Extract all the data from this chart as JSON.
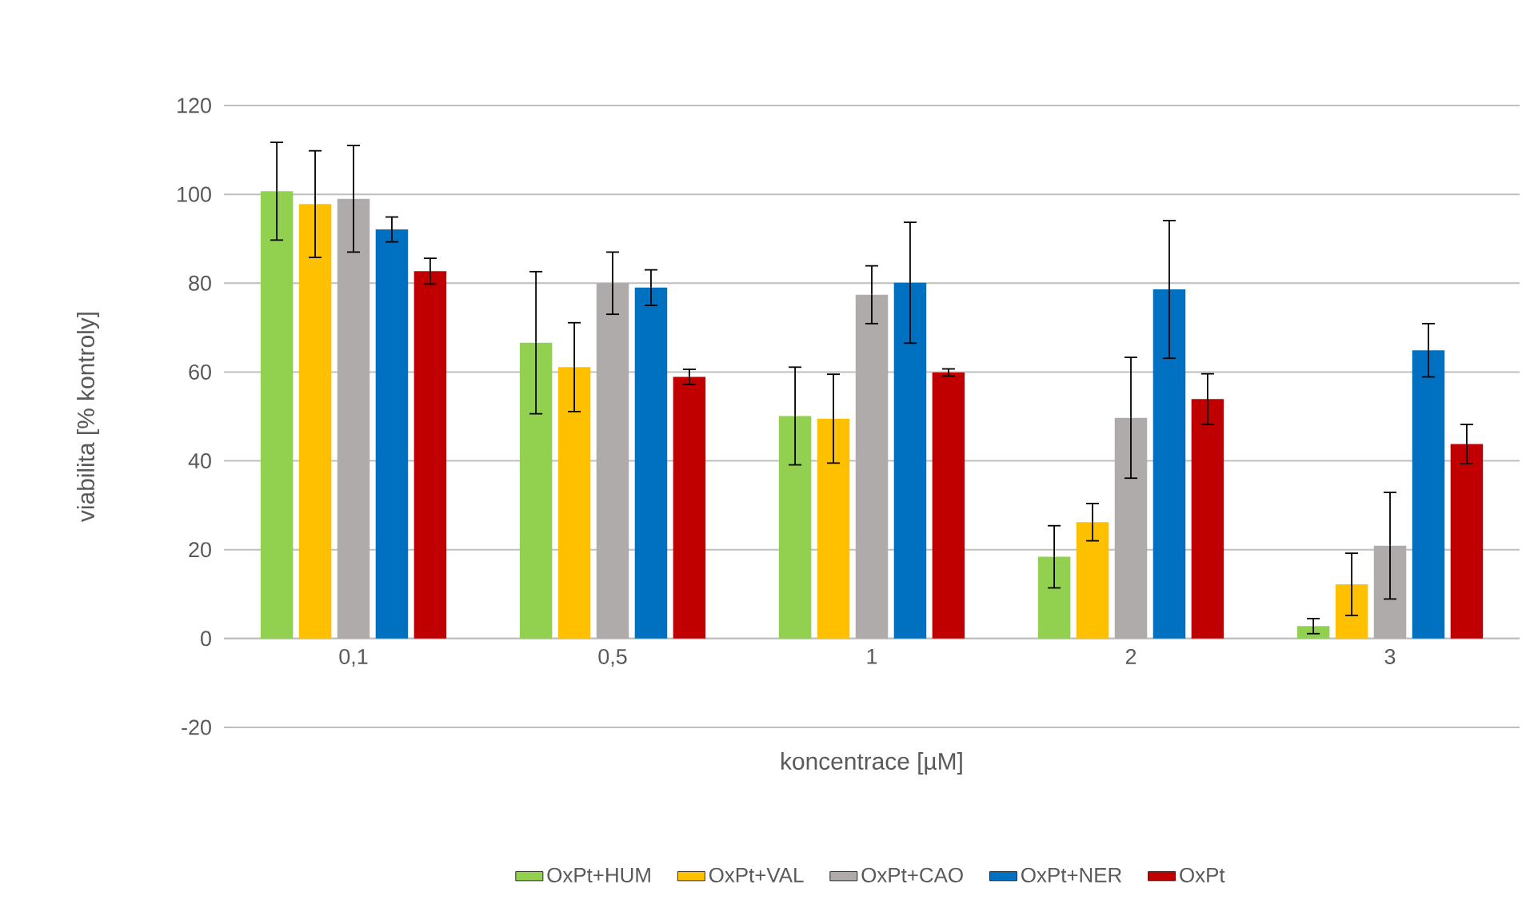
{
  "chart_data": {
    "type": "bar",
    "xlabel": "koncentrace [µM]",
    "ylabel": "viabilita [% kontroly]",
    "categories": [
      "0,1",
      "0,5",
      "1",
      "2",
      "3"
    ],
    "series": [
      {
        "name": "OxPt+HUM",
        "color": "#92d050",
        "values": [
          100.7,
          66.6,
          50.1,
          18.4,
          2.8
        ],
        "errors": [
          11,
          16,
          11,
          7,
          1.7
        ]
      },
      {
        "name": "OxPt+VAL",
        "color": "#ffc000",
        "values": [
          97.8,
          61.1,
          49.5,
          26.2,
          12.2
        ],
        "errors": [
          12,
          10,
          10,
          4.2,
          7
        ]
      },
      {
        "name": "OxPt+CAO",
        "color": "#afabab",
        "values": [
          99,
          80,
          77.4,
          49.7,
          20.9
        ],
        "errors": [
          12,
          7,
          6.5,
          13.6,
          12
        ]
      },
      {
        "name": "OxPt+NER",
        "color": "#0070c0",
        "values": [
          92.1,
          79,
          80.1,
          78.6,
          64.9
        ],
        "errors": [
          2.8,
          4,
          13.6,
          15.5,
          6
        ]
      },
      {
        "name": "OxPt",
        "color": "#c00000",
        "values": [
          82.7,
          58.9,
          59.9,
          53.9,
          43.8
        ],
        "errors": [
          2.9,
          1.7,
          0.8,
          5.7,
          4.4
        ]
      }
    ],
    "ylim": [
      -20,
      120
    ],
    "yticks": [
      -20,
      0,
      20,
      40,
      60,
      80,
      100,
      120
    ],
    "grid": "y",
    "legend": "bottom"
  }
}
